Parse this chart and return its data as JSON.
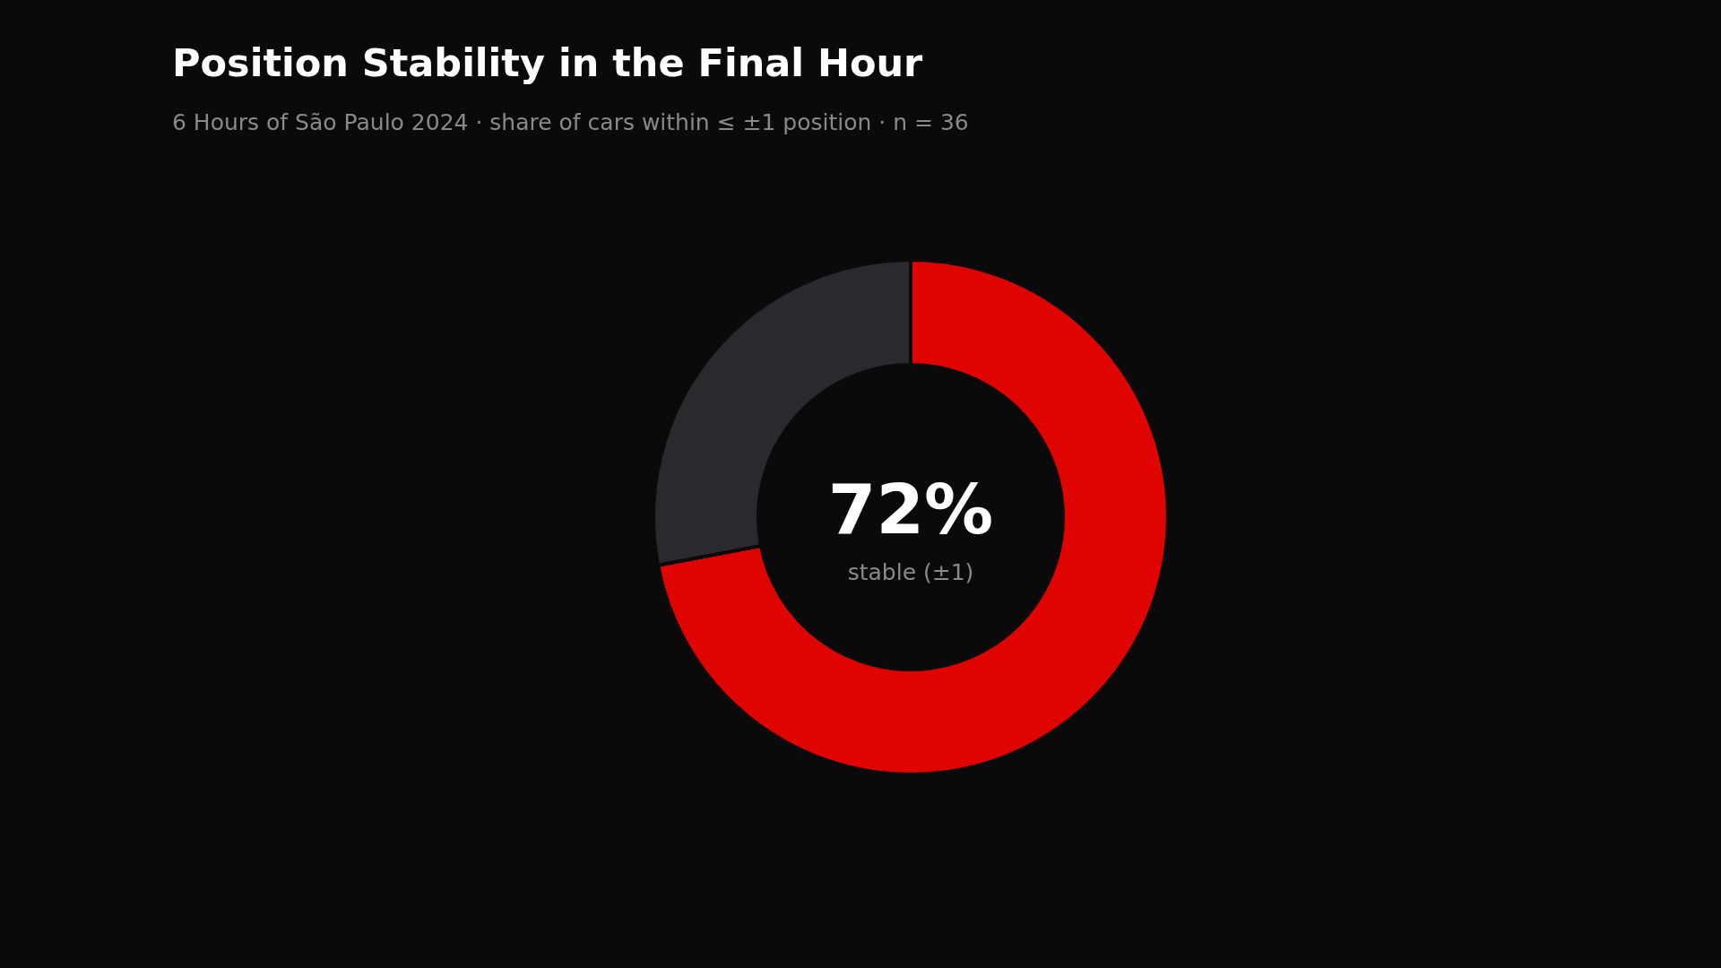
{
  "chart_data": {
    "type": "donut",
    "title": "Position Stability in the Final Hour",
    "subtitle": "6 Hours of São Paulo 2024 · share of cars within ≤ ±1 position · n = 36",
    "categories": [
      null,
      null
    ],
    "values": [
      72,
      28
    ],
    "colors": [
      "#e00400",
      "#2a292e"
    ],
    "annotations": [
      "72%",
      "stable (±1)"
    ]
  }
}
